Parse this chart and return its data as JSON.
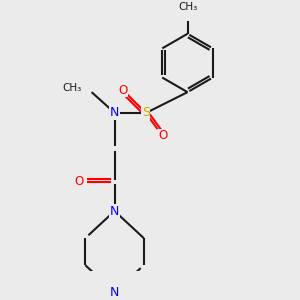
{
  "bg_color": "#ebebeb",
  "line_color": "#1a1a1a",
  "N_color": "#0000ff",
  "O_color": "#ff0000",
  "S_color": "#ccaa00",
  "bond_lw": 1.5,
  "figsize": [
    3.0,
    3.0
  ],
  "dpi": 100,
  "xlim": [
    -1.8,
    2.2
  ],
  "ylim": [
    -3.5,
    2.5
  ]
}
